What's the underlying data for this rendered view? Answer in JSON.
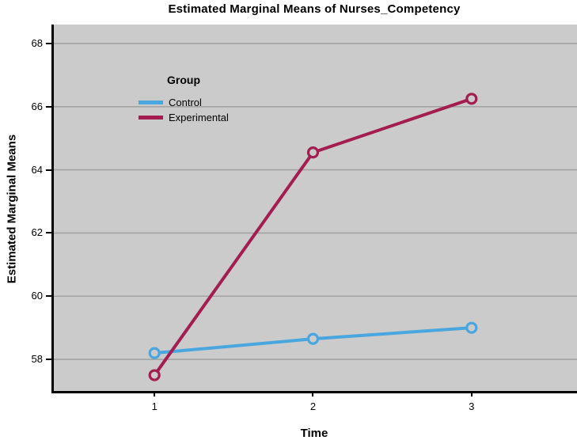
{
  "title": "Estimated Marginal Means of Nurses_Competency",
  "chart_data": {
    "type": "line",
    "title": "Estimated Marginal Means of Nurses_Competency",
    "xlabel": "Time",
    "ylabel": "Estimated Marginal Means",
    "categories": [
      "1",
      "2",
      "3"
    ],
    "x": [
      1,
      2,
      3
    ],
    "series": [
      {
        "name": "Control",
        "values": [
          58.2,
          58.65,
          59.0
        ],
        "color": "#4AA6DF"
      },
      {
        "name": "Experimental",
        "values": [
          57.5,
          64.55,
          66.25
        ],
        "color": "#A31D51"
      }
    ],
    "yticks": [
      58,
      60,
      62,
      64,
      66,
      68
    ],
    "ylim": [
      57.0,
      68.6
    ],
    "legend_title": "Group",
    "legend_position": "top-left-inside",
    "grid": "horizontal-only",
    "marker": "open-circle",
    "plot_bg": "#CBCBCB",
    "grid_color": "#A3A3A3",
    "axis_color": "#000000"
  }
}
